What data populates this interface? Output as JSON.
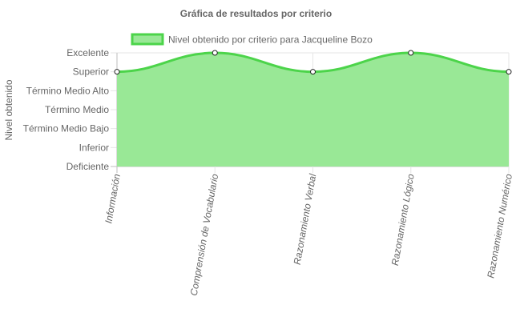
{
  "chart_data": {
    "type": "area",
    "title": "Gráfica de resultados por criterio",
    "ylabel": "Nivel obtenido",
    "xlabel": "",
    "legend_position": "top",
    "grid": true,
    "y_levels": [
      "Deficiente",
      "Inferior",
      "Término Medio Bajo",
      "Término Medio",
      "Término Medio Alto",
      "Superior",
      "Excelente"
    ],
    "categories": [
      "Información",
      "Comprensión de Vocabulario",
      "Razonamiento Verbal",
      "Razonamiento Lógico",
      "Razonamiento Numérico"
    ],
    "series": [
      {
        "name": "Nivel obtenido por criterio para Jacqueline Bozo",
        "values": [
          "Superior",
          "Excelente",
          "Superior",
          "Excelente",
          "Superior"
        ],
        "line_color": "#4cd44a",
        "fill_color": "#99e896"
      }
    ]
  }
}
